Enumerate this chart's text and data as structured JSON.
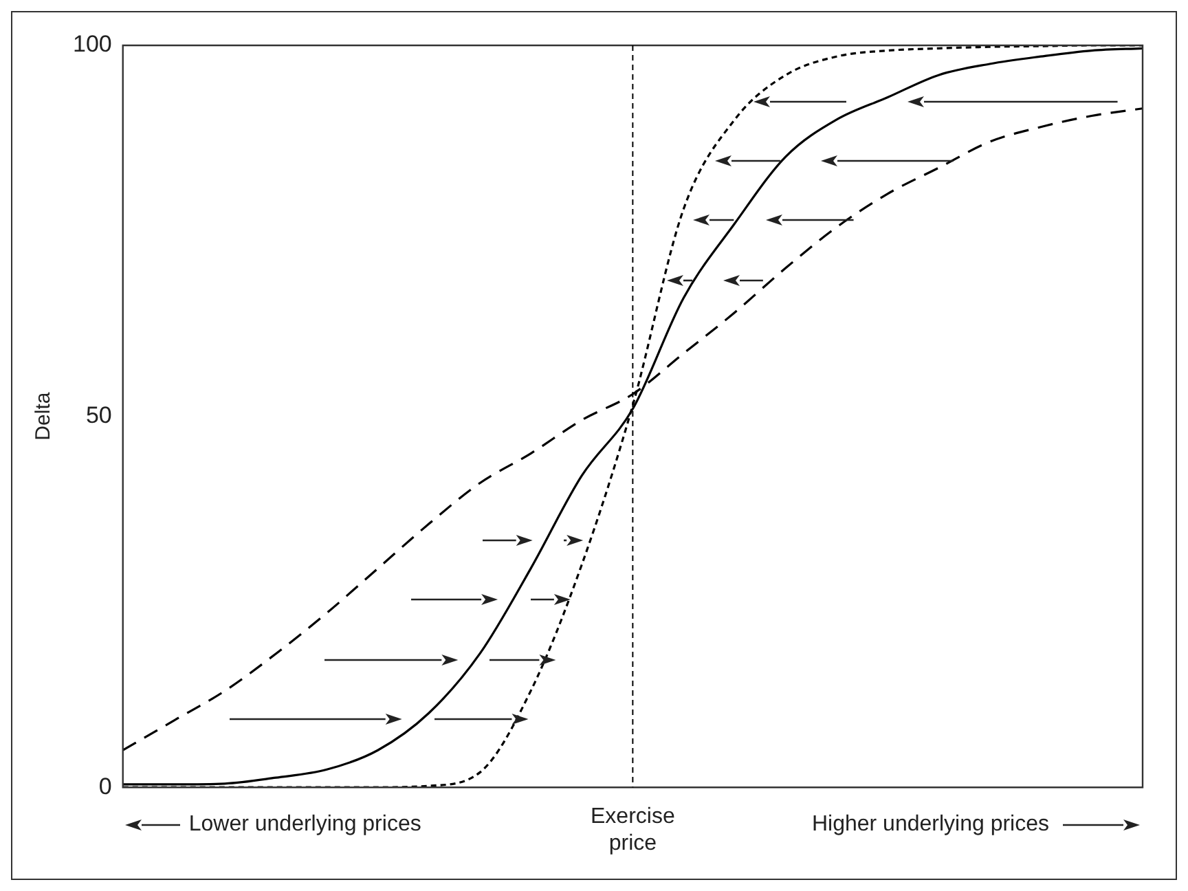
{
  "chart_data": {
    "type": "line",
    "ylabel": "Delta",
    "categories": [
      null,
      null,
      null,
      null,
      null,
      null,
      null,
      null,
      null,
      null,
      "Exercise price",
      null,
      null,
      null,
      null,
      null,
      null,
      null,
      null,
      null,
      null
    ],
    "ylim": [
      0,
      100
    ],
    "yticks": [
      0,
      50,
      100
    ],
    "grid": false,
    "legend": false,
    "marker": "none",
    "series": [
      {
        "color": "#000000",
        "line_style": "solid",
        "values": [
          0.4,
          0.4,
          0.5,
          1.3,
          2.4,
          5,
          10,
          18,
          29.5,
          42,
          51,
          66,
          76,
          85,
          90,
          93,
          96,
          97.5,
          98.5,
          99.3,
          99.6
        ]
      },
      {
        "color": "#000000",
        "line_style": "dashed",
        "values": [
          5,
          9,
          13,
          18,
          23.5,
          29.5,
          35.5,
          41,
          45,
          49.5,
          53,
          58.5,
          64,
          70,
          75.5,
          80,
          83.5,
          87,
          89,
          90.5,
          91.5
        ]
      },
      {
        "color": "#000000",
        "line_style": "dotted",
        "values": [
          0,
          0,
          0,
          0,
          0,
          0,
          0.2,
          2,
          13,
          30,
          51.5,
          78,
          90,
          96,
          98.5,
          99.3,
          99.6,
          99.8,
          99.9,
          100,
          100
        ]
      }
    ],
    "ref_lines": [
      {
        "axis": "x",
        "value": "Exercise price",
        "line_style": "dotted",
        "color": "#000000"
      }
    ],
    "annotations": [
      "Lower underlying prices",
      "Higher underlying prices"
    ]
  }
}
